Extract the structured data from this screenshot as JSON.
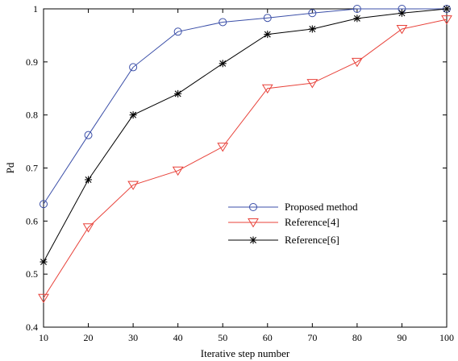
{
  "chart_data": {
    "type": "line",
    "xlabel": "Iterative step number",
    "ylabel": "Pd",
    "xlim": [
      10,
      100
    ],
    "ylim": [
      0.4,
      1.0
    ],
    "xticks": [
      10,
      20,
      30,
      40,
      50,
      60,
      70,
      80,
      90,
      100
    ],
    "yticks": [
      0.4,
      0.5,
      0.6,
      0.7,
      0.8,
      0.9,
      1.0
    ],
    "ytick_labels": [
      "0.4",
      "0.5",
      "0.6",
      "0.7",
      "0.8",
      "0.9",
      "1"
    ],
    "grid": false,
    "legend_position": "center-right",
    "x": [
      10,
      20,
      30,
      40,
      50,
      60,
      70,
      80,
      90,
      100
    ],
    "series": [
      {
        "name": "Proposed method",
        "values": [
          0.632,
          0.762,
          0.89,
          0.957,
          0.975,
          0.983,
          0.992,
          1.0,
          1.0,
          1.0
        ],
        "color": "#3b4fa8",
        "marker": "circle"
      },
      {
        "name": "Reference[4]",
        "values": [
          0.455,
          0.588,
          0.668,
          0.695,
          0.74,
          0.85,
          0.86,
          0.9,
          0.962,
          0.98
        ],
        "color": "#e8423a",
        "marker": "triangle-down"
      },
      {
        "name": "Reference[6]",
        "values": [
          0.523,
          0.678,
          0.8,
          0.84,
          0.897,
          0.952,
          0.962,
          0.982,
          0.992,
          1.0
        ],
        "color": "#000000",
        "marker": "asterisk"
      }
    ]
  }
}
